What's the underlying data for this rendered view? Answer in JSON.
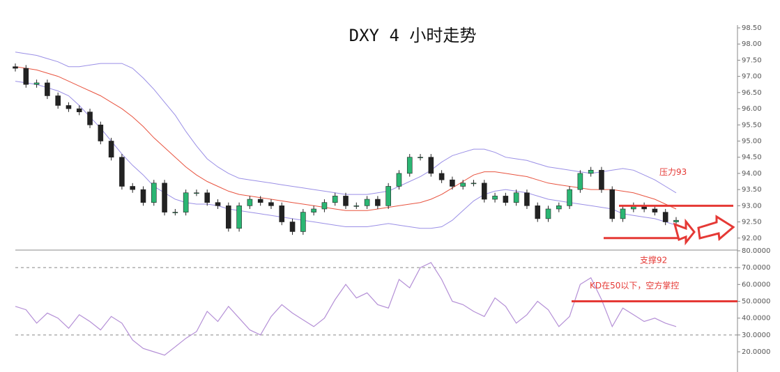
{
  "chart_data": [
    {
      "type": "candlestick",
      "title": "DXY 4 小时走势",
      "open": [
        97.3,
        97.25,
        96.75,
        96.8,
        96.4,
        96.1,
        96.0,
        95.9,
        95.5,
        95.0,
        94.5,
        93.6,
        93.5,
        93.1,
        93.7,
        92.8,
        92.8,
        93.4,
        93.4,
        93.1,
        93.0,
        92.3,
        93.0,
        93.2,
        93.1,
        93.0,
        92.5,
        92.2,
        92.8,
        92.9,
        93.1,
        93.3,
        93.0,
        93.0,
        93.2,
        93.0,
        93.6,
        94.0,
        94.5,
        94.5,
        94.0,
        93.8,
        93.6,
        93.7,
        93.7,
        93.2,
        93.3,
        93.1,
        93.4,
        93.0,
        92.6,
        92.9,
        93.0,
        93.5,
        94.0,
        94.1,
        93.5,
        92.6,
        92.9,
        93.0,
        92.9,
        92.8,
        92.5
      ],
      "high": [
        97.4,
        97.35,
        96.9,
        96.9,
        96.5,
        96.2,
        96.1,
        96.0,
        95.6,
        95.1,
        94.6,
        93.7,
        93.6,
        93.8,
        93.8,
        92.9,
        93.5,
        93.5,
        93.5,
        93.2,
        93.1,
        93.1,
        93.3,
        93.3,
        93.2,
        93.1,
        92.6,
        92.9,
        93.0,
        93.2,
        93.4,
        93.4,
        93.1,
        93.3,
        93.3,
        93.7,
        94.1,
        94.6,
        94.6,
        94.6,
        94.1,
        93.9,
        93.8,
        93.8,
        93.8,
        93.4,
        93.4,
        93.5,
        93.5,
        93.1,
        93.0,
        93.1,
        93.6,
        94.1,
        94.2,
        94.2,
        93.6,
        93.0,
        93.1,
        93.1,
        93.0,
        92.9,
        92.65
      ],
      "low": [
        97.15,
        96.65,
        96.65,
        96.3,
        96.0,
        95.9,
        95.8,
        95.4,
        94.9,
        94.4,
        93.5,
        93.4,
        93.0,
        93.0,
        92.7,
        92.7,
        92.7,
        93.3,
        93.0,
        92.9,
        92.2,
        92.2,
        92.9,
        93.0,
        92.9,
        92.4,
        92.1,
        92.1,
        92.7,
        92.8,
        93.0,
        92.9,
        92.9,
        92.9,
        92.9,
        92.9,
        93.5,
        93.9,
        94.4,
        93.9,
        93.7,
        93.5,
        93.5,
        93.6,
        93.1,
        93.1,
        93.0,
        93.0,
        92.9,
        92.5,
        92.5,
        92.8,
        92.9,
        93.4,
        93.9,
        93.4,
        92.5,
        92.5,
        92.8,
        92.8,
        92.7,
        92.4,
        92.4
      ],
      "close": [
        97.25,
        96.75,
        96.8,
        96.4,
        96.1,
        96.0,
        95.9,
        95.5,
        95.0,
        94.5,
        93.6,
        93.5,
        93.1,
        93.7,
        92.8,
        92.8,
        93.4,
        93.4,
        93.1,
        93.0,
        92.3,
        93.0,
        93.2,
        93.1,
        93.0,
        92.5,
        92.2,
        92.8,
        92.9,
        93.1,
        93.3,
        93.0,
        93.0,
        93.2,
        93.0,
        93.6,
        94.0,
        94.5,
        94.5,
        94.0,
        93.8,
        93.6,
        93.7,
        93.7,
        93.2,
        93.3,
        93.1,
        93.4,
        93.0,
        92.6,
        92.9,
        93.0,
        93.5,
        94.0,
        94.1,
        93.5,
        92.6,
        92.9,
        93.0,
        92.9,
        92.8,
        92.5,
        92.55
      ],
      "up_color": "#2bb673",
      "down_color": "#222222",
      "bands": {
        "upper": [
          97.75,
          97.7,
          97.65,
          97.55,
          97.45,
          97.3,
          97.3,
          97.35,
          97.4,
          97.4,
          97.4,
          97.25,
          96.95,
          96.6,
          96.2,
          95.8,
          95.3,
          94.85,
          94.45,
          94.2,
          94.0,
          93.85,
          93.8,
          93.75,
          93.7,
          93.65,
          93.6,
          93.55,
          93.5,
          93.45,
          93.4,
          93.35,
          93.35,
          93.35,
          93.4,
          93.45,
          93.6,
          93.75,
          93.9,
          94.1,
          94.35,
          94.55,
          94.65,
          94.75,
          94.75,
          94.65,
          94.5,
          94.45,
          94.4,
          94.3,
          94.2,
          94.15,
          94.1,
          94.05,
          94.0,
          94.05,
          94.1,
          94.15,
          94.1,
          93.95,
          93.8,
          93.6,
          93.4
        ],
        "middle": [
          97.3,
          97.25,
          97.2,
          97.1,
          97.0,
          96.85,
          96.7,
          96.55,
          96.4,
          96.2,
          96.0,
          95.75,
          95.45,
          95.1,
          94.8,
          94.5,
          94.2,
          93.95,
          93.75,
          93.6,
          93.45,
          93.35,
          93.3,
          93.25,
          93.2,
          93.15,
          93.1,
          93.05,
          93.0,
          92.95,
          92.9,
          92.85,
          92.85,
          92.85,
          92.9,
          92.95,
          93.0,
          93.05,
          93.1,
          93.2,
          93.35,
          93.55,
          93.75,
          93.95,
          94.05,
          94.05,
          94.0,
          93.95,
          93.9,
          93.8,
          93.7,
          93.65,
          93.6,
          93.55,
          93.5,
          93.5,
          93.5,
          93.45,
          93.4,
          93.3,
          93.2,
          93.05,
          92.9
        ],
        "lower": [
          96.85,
          96.8,
          96.75,
          96.65,
          96.55,
          96.4,
          96.1,
          95.75,
          95.4,
          95.0,
          94.6,
          94.25,
          93.95,
          93.6,
          93.4,
          93.2,
          93.1,
          93.05,
          93.05,
          93.0,
          92.9,
          92.85,
          92.8,
          92.75,
          92.7,
          92.65,
          92.6,
          92.55,
          92.5,
          92.45,
          92.4,
          92.35,
          92.35,
          92.35,
          92.4,
          92.45,
          92.4,
          92.35,
          92.3,
          92.3,
          92.35,
          92.55,
          92.85,
          93.15,
          93.35,
          93.45,
          93.5,
          93.45,
          93.4,
          93.3,
          93.2,
          93.15,
          93.1,
          93.05,
          93.0,
          92.95,
          92.9,
          92.75,
          92.7,
          92.65,
          92.6,
          92.5,
          92.4
        ],
        "band_color": "#9a8fe6",
        "middle_color": "#e8533f"
      },
      "ylim": [
        91.65,
        98.5
      ],
      "yticks": [
        {
          "value": 92,
          "label": "92.00"
        },
        {
          "value": 92.5,
          "label": "92.50"
        },
        {
          "value": 93,
          "label": "93.00"
        },
        {
          "value": 93.5,
          "label": "93.50"
        },
        {
          "value": 94,
          "label": "94.00"
        },
        {
          "value": 94.5,
          "label": "94.50"
        },
        {
          "value": 95,
          "label": "95.00"
        },
        {
          "value": 95.5,
          "label": "95.50"
        },
        {
          "value": 96,
          "label": "96.00"
        },
        {
          "value": 96.5,
          "label": "96.50"
        },
        {
          "value": 97,
          "label": "97.00"
        },
        {
          "value": 97.5,
          "label": "97.50"
        },
        {
          "value": 98,
          "label": "98.00"
        },
        {
          "value": 98.5,
          "label": "98.50"
        }
      ],
      "annotations": [
        {
          "text": "压力93",
          "value": 93
        },
        {
          "text": "支撑92",
          "value": 92
        }
      ],
      "annotation_color": "#e53935"
    },
    {
      "type": "line",
      "values": [
        47,
        45,
        37,
        43,
        40,
        34,
        42,
        38,
        33,
        41,
        37,
        27,
        22,
        20,
        18,
        23,
        28,
        32,
        44,
        38,
        47,
        40,
        33,
        30,
        41,
        48,
        43,
        39,
        35,
        40,
        51,
        60,
        52,
        55,
        48,
        46,
        63,
        58,
        70,
        73,
        63,
        50,
        48,
        44,
        41,
        52,
        47,
        37,
        42,
        50,
        45,
        35,
        41,
        60,
        64,
        51,
        35,
        46,
        42,
        38,
        40,
        37,
        35
      ],
      "color": "#b48fd6",
      "ylim": [
        8,
        80
      ],
      "yticks": [
        {
          "value": 20,
          "label": "20.0000"
        },
        {
          "value": 30,
          "label": "30.0000"
        },
        {
          "value": 40,
          "label": "40.0000"
        },
        {
          "value": 50,
          "label": "50.0000"
        },
        {
          "value": 60,
          "label": "60.0000"
        },
        {
          "value": 70,
          "label": "70.0000"
        },
        {
          "value": 80,
          "label": "80.0000"
        }
      ],
      "reference_lines": [
        70,
        30
      ],
      "annotations": [
        {
          "text": "KD在50以下，空方掌控",
          "value": 50
        }
      ],
      "annotation_color": "#e53935"
    }
  ]
}
